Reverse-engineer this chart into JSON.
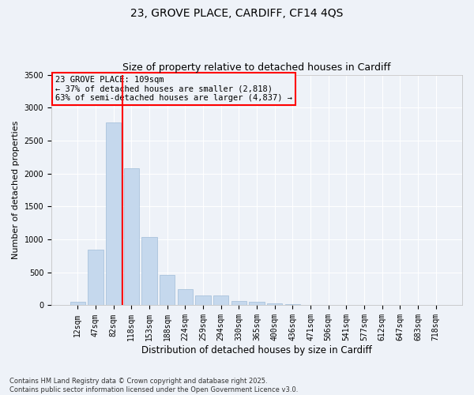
{
  "title_line1": "23, GROVE PLACE, CARDIFF, CF14 4QS",
  "title_line2": "Size of property relative to detached houses in Cardiff",
  "xlabel": "Distribution of detached houses by size in Cardiff",
  "ylabel": "Number of detached properties",
  "categories": [
    "12sqm",
    "47sqm",
    "82sqm",
    "118sqm",
    "153sqm",
    "188sqm",
    "224sqm",
    "259sqm",
    "294sqm",
    "330sqm",
    "365sqm",
    "400sqm",
    "436sqm",
    "471sqm",
    "506sqm",
    "541sqm",
    "577sqm",
    "612sqm",
    "647sqm",
    "683sqm",
    "718sqm"
  ],
  "values": [
    55,
    840,
    2780,
    2080,
    1040,
    460,
    250,
    155,
    150,
    65,
    55,
    35,
    20,
    10,
    5,
    2,
    2,
    1,
    1,
    0,
    0
  ],
  "bar_color": "#c5d8ed",
  "bar_edgecolor": "#a0bcd8",
  "vline_color": "red",
  "vline_x_index": 2.5,
  "annotation_text": "23 GROVE PLACE: 109sqm\n← 37% of detached houses are smaller (2,818)\n63% of semi-detached houses are larger (4,837) →",
  "annotation_box_color": "red",
  "ylim": [
    0,
    3500
  ],
  "yticks": [
    0,
    500,
    1000,
    1500,
    2000,
    2500,
    3000,
    3500
  ],
  "background_color": "#eef2f8",
  "grid_color": "#ffffff",
  "footnote": "Contains HM Land Registry data © Crown copyright and database right 2025.\nContains public sector information licensed under the Open Government Licence v3.0.",
  "title_fontsize": 10,
  "subtitle_fontsize": 9,
  "tick_fontsize": 7,
  "ylabel_fontsize": 8,
  "xlabel_fontsize": 8.5
}
